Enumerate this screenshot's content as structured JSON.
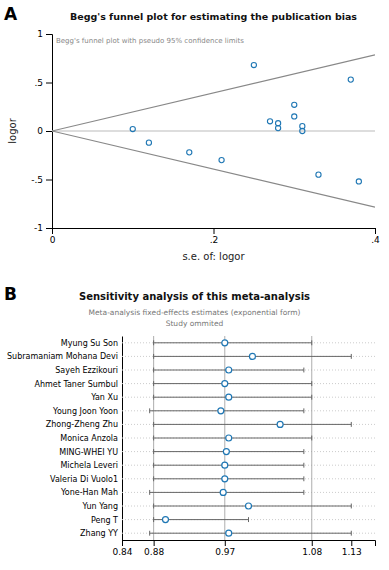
{
  "chart_data": [
    {
      "type": "scatter",
      "annotations": [
        "A"
      ],
      "title": "Begg's funnel plot for estimating the publication bias",
      "subtitle": "Begg's funnel plot with pseudo 95% confidence limits",
      "xlabel": "s.e. of: logor",
      "ylabel": "logor",
      "x": [
        0.1,
        0.12,
        0.17,
        0.21,
        0.25,
        0.27,
        0.28,
        0.28,
        0.3,
        0.3,
        0.31,
        0.31,
        0.33,
        0.37,
        0.38
      ],
      "values": [
        0.02,
        -0.12,
        -0.22,
        -0.3,
        0.68,
        0.1,
        0.08,
        0.03,
        0.27,
        0.15,
        0.05,
        0.0,
        -0.45,
        0.53,
        -0.52
      ],
      "lines": [
        {
          "x": [
            0,
            0.4
          ],
          "values": [
            0,
            0.784
          ]
        },
        {
          "x": [
            0,
            0.4
          ],
          "values": [
            0,
            -0.784
          ]
        }
      ],
      "hlines": [
        0
      ],
      "xlim": [
        0,
        0.4
      ],
      "ylim": [
        -1.0,
        1.0
      ],
      "xticks": [
        0,
        {
          "value": 0.2,
          "label": ".2"
        },
        {
          "value": 0.4,
          "label": ".4"
        }
      ],
      "yticks": [
        -1,
        {
          "value": -0.5,
          "label": "-.5"
        },
        0,
        {
          "value": 0.5,
          "label": ".5"
        },
        1
      ],
      "grid": false
    },
    {
      "type": "errorbar",
      "orientation": "horizontal",
      "annotations": [
        "B"
      ],
      "title": "Sensitivity analysis of this meta-analysis",
      "subtitle": [
        "Meta-analysis fixed-effects estimates (exponential form)",
        "Study ommited"
      ],
      "categories": [
        "Myung Su Son",
        "Subramaniam Mohana Devi",
        "Sayeh Ezzikouri",
        "Ahmet Taner Sumbul",
        "Yan Xu",
        "Young Joon Yoon",
        "Zhong-Zheng Zhu",
        "Monica Anzola",
        "MING-WHEI YU",
        "Michela Leveri",
        "Valeria Di Vuolo1",
        "Yone-Han Mah",
        "Yun Yang",
        "Peng T",
        "Zhang YY"
      ],
      "values": [
        0.97,
        1.005,
        0.975,
        0.97,
        0.975,
        0.965,
        1.04,
        0.975,
        0.972,
        0.97,
        0.97,
        0.968,
        1.0,
        0.895,
        0.975
      ],
      "lower": [
        0.88,
        0.88,
        0.88,
        0.88,
        0.88,
        0.875,
        0.88,
        0.88,
        0.88,
        0.88,
        0.88,
        0.875,
        0.88,
        0.88,
        0.875
      ],
      "upper": [
        1.08,
        1.13,
        1.07,
        1.08,
        1.08,
        1.07,
        1.13,
        1.08,
        1.07,
        1.07,
        1.07,
        1.07,
        1.13,
        1.0,
        1.13
      ],
      "vlines": [
        0.88,
        0.97,
        1.08
      ],
      "xlim": [
        0.84,
        1.16
      ],
      "xticks": [
        0.84,
        0.88,
        0.97,
        1.08,
        1.13
      ],
      "grid": true
    }
  ]
}
